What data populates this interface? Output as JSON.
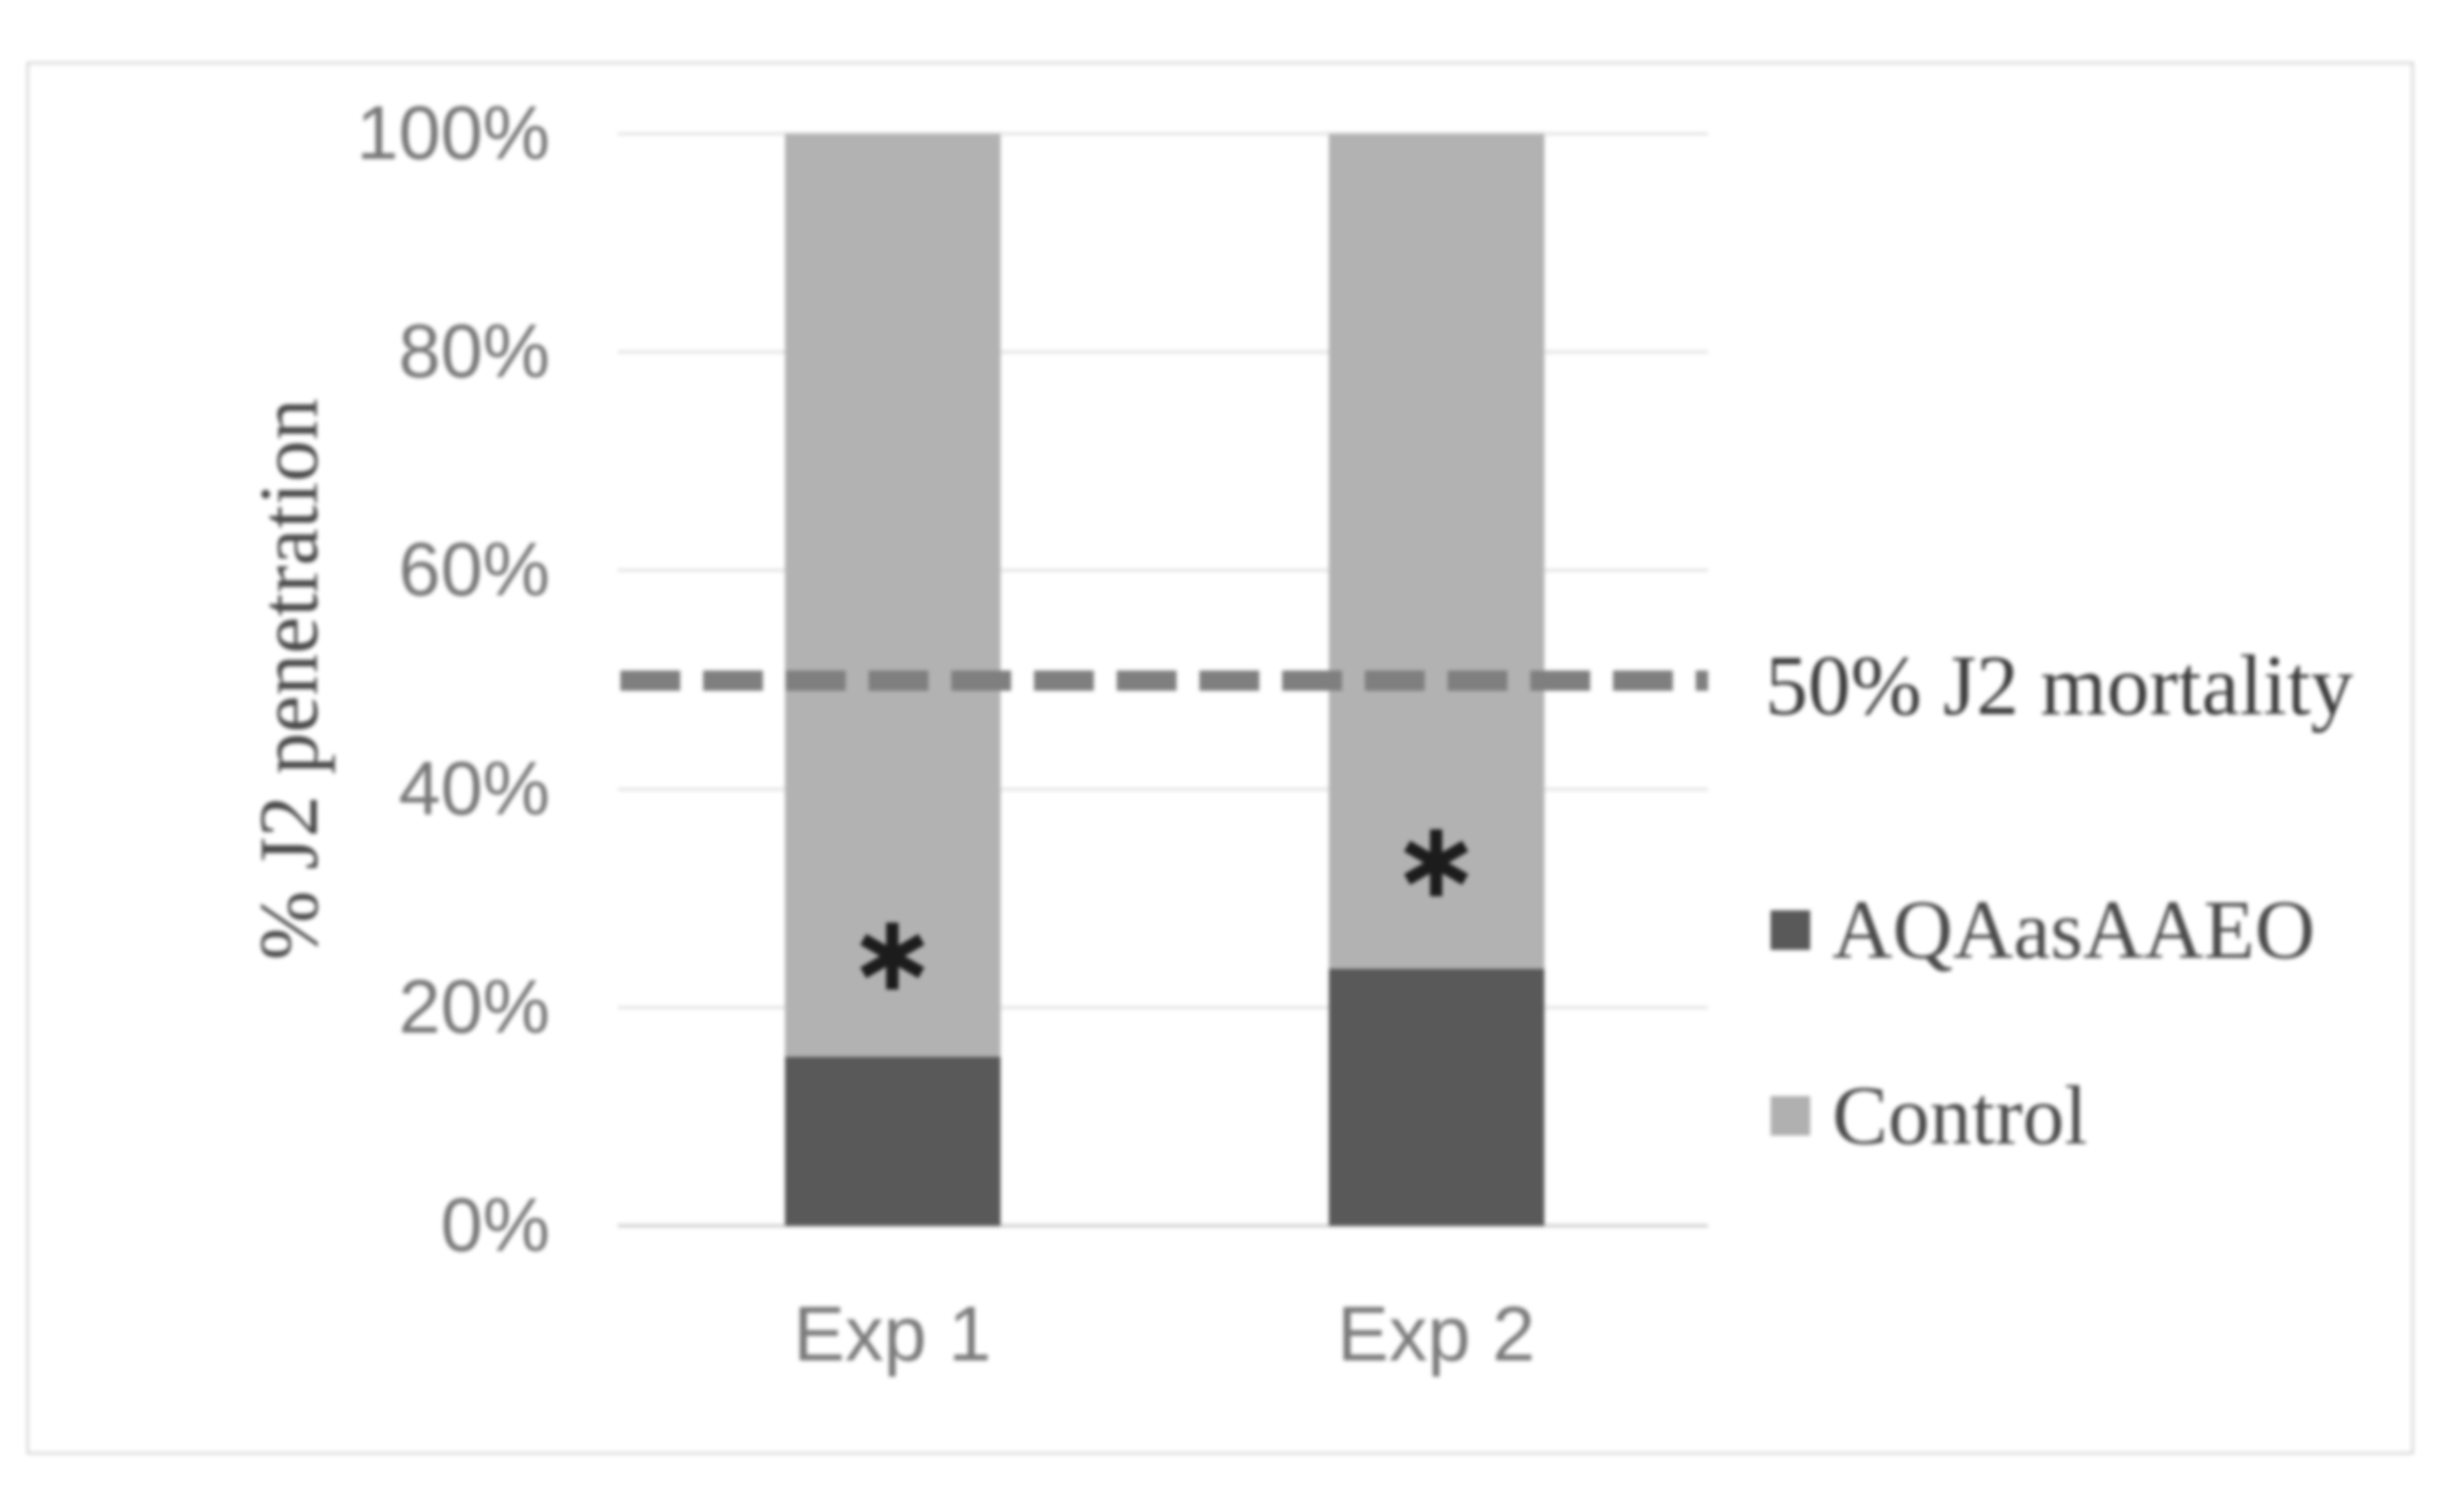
{
  "chart_data": {
    "type": "bar",
    "stacked": true,
    "title": "",
    "xlabel": "",
    "ylabel": "% J2 penetration",
    "ylim": [
      0,
      100
    ],
    "y_ticks": [
      {
        "value": 0,
        "label": "0%"
      },
      {
        "value": 20,
        "label": "20%"
      },
      {
        "value": 40,
        "label": "40%"
      },
      {
        "value": 60,
        "label": "60%"
      },
      {
        "value": 80,
        "label": "80%"
      },
      {
        "value": 100,
        "label": "100%"
      }
    ],
    "categories": [
      "Exp 1",
      "Exp 2"
    ],
    "series": [
      {
        "name": "AQAasAAEO",
        "color": "#595959",
        "values": [
          15.5,
          23.5
        ]
      },
      {
        "name": "Control",
        "color": "#b2b2b2",
        "values": [
          84.5,
          76.5
        ]
      }
    ],
    "grid": "horizontal",
    "legend_position": "right-of-plot",
    "reference_line": {
      "value": 50,
      "label": "50% J2 mortality",
      "style": "dashed",
      "color": "#7f7f7f"
    },
    "annotations": [
      {
        "text": "*",
        "category": "Exp 1",
        "y": 24.5
      },
      {
        "text": "*",
        "category": "Exp 2",
        "y": 33
      }
    ]
  },
  "legend": {
    "items": [
      {
        "label": "AQAasAAEO",
        "color": "#595959"
      },
      {
        "label": "Control",
        "color": "#b0b0b0"
      }
    ]
  },
  "colors": {
    "background": "#ffffff",
    "frame_border": "#d8d8d8",
    "gridline": "#e7e7e7",
    "axis_line": "#d2d2d2",
    "tick_text": "#777777",
    "category_text": "#7b7b7b",
    "axis_title_text": "#4a4a4a",
    "annotation": "#1c1c1c",
    "reference_label_text": "#3c3c3c",
    "legend_text": "#4a4a4a"
  }
}
